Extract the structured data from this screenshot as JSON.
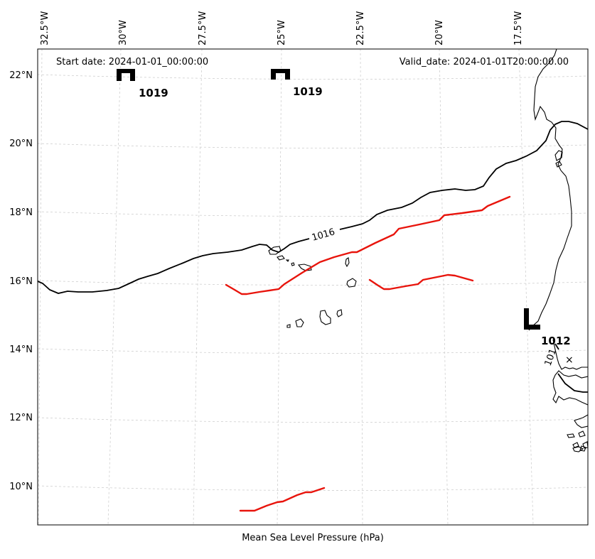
{
  "map": {
    "start_date": "Start date: 2024-01-01_00:00:00",
    "valid_date": "Valid_date: 2024-01-01T20:00:00.00",
    "footer": "Mean Sea Level Pressure (hPa)",
    "lon_ticks": [
      "32.5°W",
      "30°W",
      "27.5°W",
      "25°W",
      "22.5°W",
      "20°W",
      "17.5°W"
    ],
    "lat_ticks": [
      "22°N",
      "20°N",
      "18°N",
      "16°N",
      "14°N",
      "12°N",
      "10°N"
    ],
    "pressure_centers": [
      {
        "type": "H",
        "value": "1019",
        "lon": -29.7,
        "lat": 22.0
      },
      {
        "type": "H",
        "value": "1019",
        "lon": -24.9,
        "lat": 22.0
      },
      {
        "type": "L",
        "value": "1012",
        "lon": -17.0,
        "lat": 14.7
      }
    ],
    "isobar_labels": [
      "1016",
      "1012"
    ],
    "min_marker": {
      "symbol": "×",
      "lon": -16.0,
      "lat": 13.7
    },
    "colors": {
      "isobar": "#000000",
      "front": "#e8140c",
      "grid": "#cfcfcf",
      "coast": "#000000"
    }
  }
}
